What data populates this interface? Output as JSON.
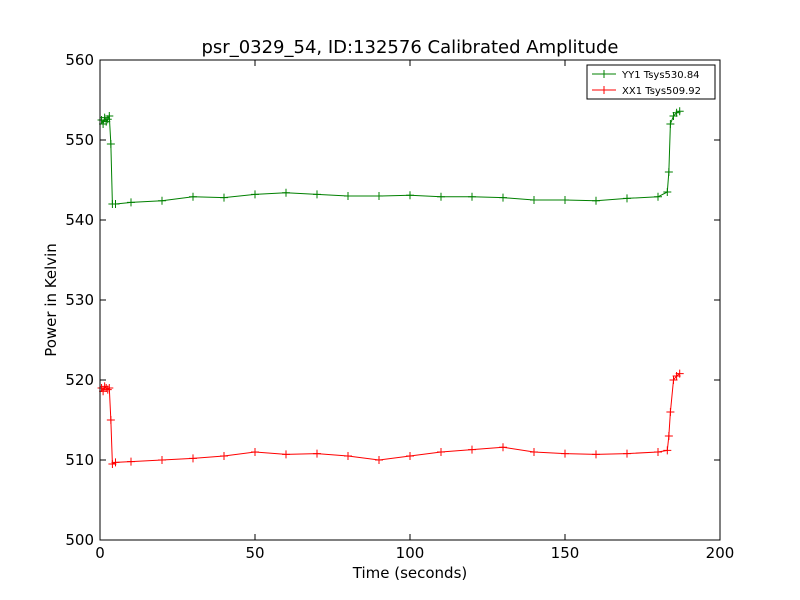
{
  "chart_data": {
    "type": "line",
    "title": "psr_0329_54, ID:132576 Calibrated Amplitude",
    "xlabel": "Time (seconds)",
    "ylabel": "Power in Kelvin",
    "xlim": [
      0,
      200
    ],
    "ylim": [
      500,
      560
    ],
    "xticks": [
      "0",
      "50",
      "100",
      "150",
      "200"
    ],
    "yticks": [
      "500",
      "510",
      "520",
      "530",
      "540",
      "550",
      "560"
    ],
    "grid": false,
    "legend_position": "top-right",
    "series": [
      {
        "name": "YY1 Tsys530.84",
        "color": "#008000",
        "marker": "plus",
        "x": [
          0.5,
          1.0,
          1.5,
          2.0,
          2.5,
          3.0,
          3.5,
          4.0,
          5,
          10,
          20,
          30,
          40,
          50,
          60,
          70,
          80,
          90,
          100,
          110,
          120,
          130,
          140,
          150,
          160,
          170,
          180,
          183.0,
          183.5,
          184.0,
          185,
          186,
          187
        ],
        "values": [
          552.5,
          552.0,
          552.8,
          552.3,
          552.6,
          553.0,
          549.5,
          542.0,
          542.0,
          542.2,
          542.4,
          542.9,
          542.8,
          543.2,
          543.4,
          543.2,
          543.0,
          543.0,
          543.1,
          542.9,
          542.9,
          542.8,
          542.5,
          542.5,
          542.4,
          542.7,
          542.9,
          543.5,
          546.0,
          552.0,
          553.0,
          553.4,
          553.6
        ]
      },
      {
        "name": "XX1 Tsys509.92",
        "color": "#ff0000",
        "marker": "plus",
        "x": [
          0.5,
          1.0,
          1.5,
          2.0,
          2.5,
          3.0,
          3.5,
          4.0,
          5,
          10,
          20,
          30,
          40,
          50,
          60,
          70,
          80,
          90,
          100,
          110,
          120,
          130,
          140,
          150,
          160,
          170,
          180,
          183.0,
          183.5,
          184.0,
          185,
          186,
          187
        ],
        "values": [
          519.0,
          518.6,
          519.2,
          519.0,
          518.8,
          519.0,
          515.0,
          509.5,
          509.7,
          509.8,
          510.0,
          510.2,
          510.5,
          511.0,
          510.7,
          510.8,
          510.5,
          510.0,
          510.5,
          511.0,
          511.3,
          511.6,
          511.0,
          510.8,
          510.7,
          510.8,
          511.0,
          511.2,
          513.0,
          516.0,
          520.0,
          520.5,
          520.8
        ]
      }
    ]
  }
}
